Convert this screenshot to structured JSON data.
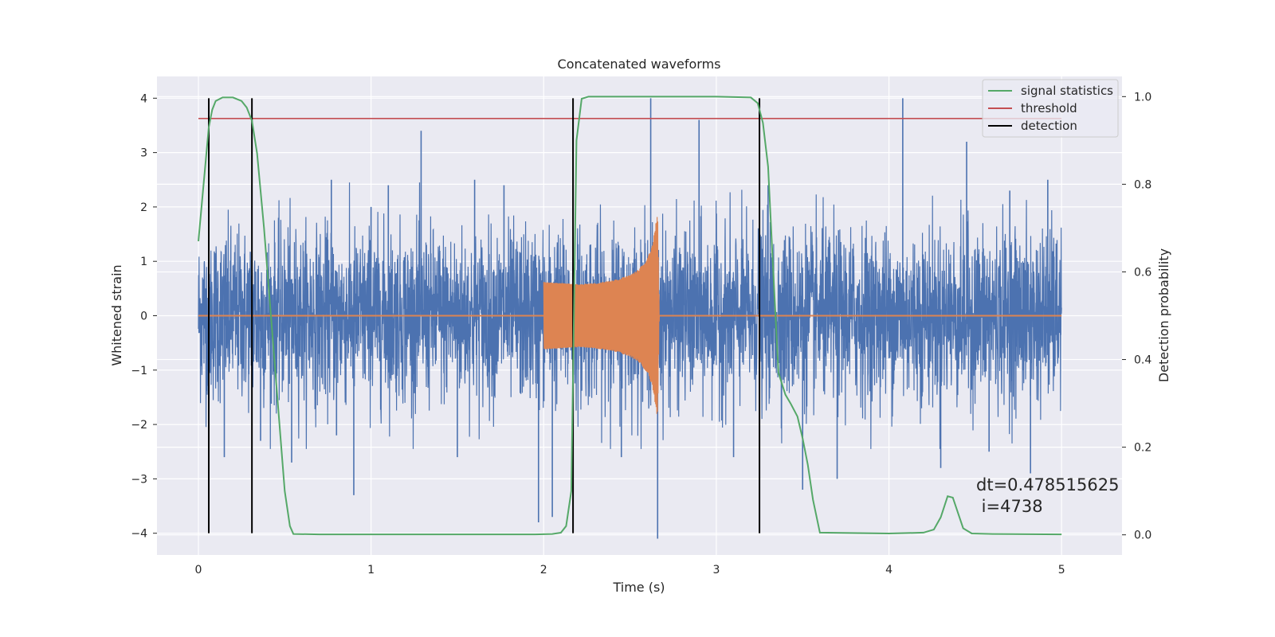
{
  "chart_data": {
    "type": "line",
    "title": "Concatenated waveforms",
    "xlabel": "Time (s)",
    "ylabel": "Whitened strain",
    "ylabel_right": "Detection probability",
    "xlim": [
      -0.24,
      5.35
    ],
    "ylim": [
      -4.4,
      4.4
    ],
    "ylim_right": [
      -0.046,
      1.046
    ],
    "x_ticks": [
      0,
      1,
      2,
      3,
      4,
      5
    ],
    "y_ticks": [
      -4,
      -3,
      -2,
      -1,
      0,
      1,
      2,
      3,
      4
    ],
    "y_ticks_right": [
      "0.0",
      "0.2",
      "0.4",
      "0.6",
      "0.8",
      "1.0"
    ],
    "grid": true,
    "legend_position": "top-right",
    "legend": [
      {
        "label": "signal statistics",
        "color": "#55a868"
      },
      {
        "label": "threshold",
        "color": "#c44e52"
      },
      {
        "label": "detection",
        "color": "#000000"
      }
    ],
    "series": [
      {
        "name": "strain",
        "color": "#4c72b0",
        "x_range": [
          0,
          5
        ],
        "typical_amplitude": 1.0,
        "peaks": [
          {
            "x": 0.06,
            "y": 1.2
          },
          {
            "x": 0.15,
            "y": -2.6
          },
          {
            "x": 0.31,
            "y": 2.4
          },
          {
            "x": 0.36,
            "y": -2.3
          },
          {
            "x": 0.54,
            "y": -2.7
          },
          {
            "x": 0.77,
            "y": 2.5
          },
          {
            "x": 0.8,
            "y": -2.2
          },
          {
            "x": 1.0,
            "y": 2.0
          },
          {
            "x": 1.1,
            "y": 2.4
          },
          {
            "x": 1.29,
            "y": 3.4
          },
          {
            "x": 0.9,
            "y": -3.3
          },
          {
            "x": 1.5,
            "y": -2.6
          },
          {
            "x": 1.6,
            "y": 2.5
          },
          {
            "x": 1.77,
            "y": 2.4
          },
          {
            "x": 1.97,
            "y": -3.8
          },
          {
            "x": 2.05,
            "y": -3.7
          },
          {
            "x": 2.45,
            "y": -2.6
          },
          {
            "x": 2.62,
            "y": 4.0
          },
          {
            "x": 2.66,
            "y": -4.1
          },
          {
            "x": 2.9,
            "y": 3.6
          },
          {
            "x": 3.1,
            "y": -2.6
          },
          {
            "x": 3.3,
            "y": 2.4
          },
          {
            "x": 3.5,
            "y": -3.2
          },
          {
            "x": 3.7,
            "y": -3.0
          },
          {
            "x": 4.08,
            "y": 4.0
          },
          {
            "x": 4.3,
            "y": -2.8
          },
          {
            "x": 4.45,
            "y": 3.2
          },
          {
            "x": 4.58,
            "y": -2.5
          },
          {
            "x": 4.7,
            "y": 2.3
          },
          {
            "x": 4.82,
            "y": -2.9
          },
          {
            "x": 4.92,
            "y": 2.5
          }
        ]
      },
      {
        "name": "waveform",
        "color": "#dd8452",
        "x_range": [
          2.0,
          2.67
        ],
        "x": [
          2.0,
          2.1,
          2.2,
          2.3,
          2.4,
          2.5,
          2.55,
          2.6,
          2.63,
          2.66,
          2.67
        ],
        "amplitude": [
          0.62,
          0.6,
          0.58,
          0.6,
          0.65,
          0.75,
          0.85,
          1.05,
          1.3,
          1.9,
          0.0
        ]
      },
      {
        "name": "signal statistics",
        "color": "#55a868",
        "x": [
          0.0,
          0.03,
          0.06,
          0.08,
          0.1,
          0.14,
          0.2,
          0.25,
          0.28,
          0.31,
          0.34,
          0.38,
          0.42,
          0.46,
          0.5,
          0.53,
          0.55,
          0.7,
          1.0,
          1.5,
          1.95,
          2.05,
          2.1,
          2.13,
          2.16,
          2.19,
          2.22,
          2.26,
          2.5,
          3.0,
          3.2,
          3.24,
          3.27,
          3.3,
          3.33,
          3.36,
          3.4,
          3.43,
          3.47,
          3.5,
          3.53,
          3.56,
          3.6,
          4.0,
          4.2,
          4.26,
          4.3,
          4.34,
          4.37,
          4.4,
          4.43,
          4.48,
          4.6,
          5.0
        ],
        "y": [
          0.67,
          0.8,
          0.93,
          0.97,
          0.99,
          0.998,
          0.998,
          0.99,
          0.975,
          0.945,
          0.87,
          0.7,
          0.5,
          0.3,
          0.1,
          0.02,
          0.002,
          0.001,
          0.001,
          0.001,
          0.001,
          0.002,
          0.005,
          0.02,
          0.1,
          0.9,
          0.995,
          1.0,
          1.0,
          1.0,
          0.998,
          0.985,
          0.94,
          0.84,
          0.6,
          0.37,
          0.32,
          0.3,
          0.27,
          0.22,
          0.16,
          0.08,
          0.005,
          0.003,
          0.005,
          0.012,
          0.04,
          0.088,
          0.085,
          0.05,
          0.015,
          0.003,
          0.002,
          0.001
        ]
      },
      {
        "name": "threshold",
        "color": "#c44e52",
        "x": [
          0,
          5
        ],
        "y_right": [
          0.95,
          0.95
        ]
      }
    ],
    "detections": [
      0.06,
      0.31,
      2.17,
      3.25
    ],
    "annotation": {
      "line1": "dt=0.478515625",
      "line2": " i=4738"
    }
  }
}
